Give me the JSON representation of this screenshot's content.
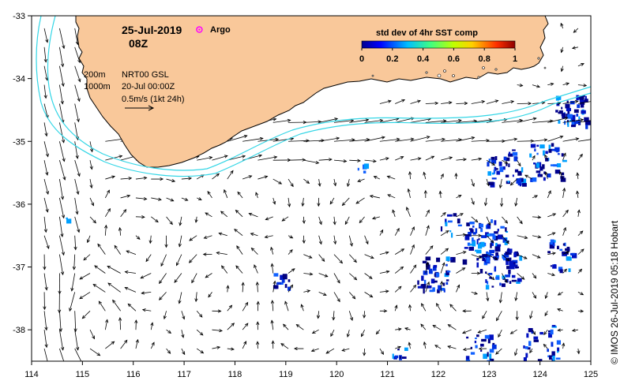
{
  "map": {
    "date_label": "25-Jul-2019",
    "hour_label": "08Z",
    "argo_label": "Argo",
    "contour_shallow_label": "200m",
    "contour_deep_label": "1000m",
    "altimetry_label": "NRT00 GSL",
    "altimetry_date_label": "20-Jul 00:00Z",
    "vector_scale_label": "0.5m/s (1kt 24h)",
    "credit": "© IMOS 26-Jul-2019 05:18 Hobart",
    "colors": {
      "land": "#f9c89a",
      "contour": "#33d6e6",
      "argo": "#ff00ff",
      "arrow": "#000000"
    },
    "icons": [
      "argo-float-icon",
      "current-arrow-icon"
    ]
  },
  "chart_data": {
    "type": "map",
    "x_axis": {
      "ticks": [
        114,
        115,
        116,
        117,
        118,
        119,
        120,
        121,
        122,
        123,
        124,
        125
      ],
      "range": [
        114,
        125
      ]
    },
    "y_axis": {
      "ticks": [
        -33,
        -34,
        -35,
        -36,
        -37,
        -38
      ],
      "range": [
        -38.5,
        -33
      ]
    },
    "colorbar": {
      "title": "std dev of 4hr SST comp",
      "ticks": [
        "0",
        "0.2",
        "0.4",
        "0.6",
        "0.8",
        "1"
      ],
      "range": [
        0,
        1
      ]
    },
    "argo_float": {
      "lon": 117.3,
      "lat": -33.22
    }
  }
}
